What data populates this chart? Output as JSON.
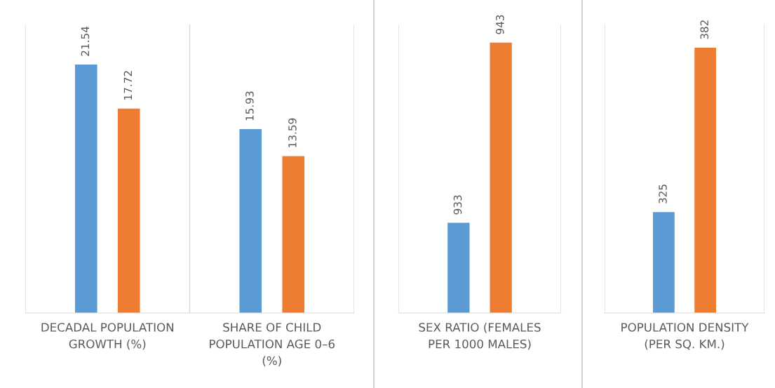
{
  "chart_data": [
    {
      "type": "bar",
      "categories": [
        "DECADAL POPULATION GROWTH (%)",
        "SHARE OF CHILD POPULATION AGE 0–6 (%)"
      ],
      "ylim": [
        0,
        25
      ],
      "data_labels": true,
      "grid": false,
      "legend": false,
      "tick_labels": "x",
      "series": [
        {
          "color": "#5b9bd5",
          "values": [
            21.54,
            15.93
          ]
        },
        {
          "color": "#ed7d31",
          "values": [
            17.72,
            13.59
          ]
        }
      ]
    },
    {
      "type": "bar",
      "categories": [
        "SEX RATIO (FEMALES PER 1000 MALES)"
      ],
      "ylim": [
        928,
        944
      ],
      "data_labels": true,
      "grid": false,
      "legend": false,
      "tick_labels": "x",
      "series": [
        {
          "color": "#5b9bd5",
          "values": [
            933
          ]
        },
        {
          "color": "#ed7d31",
          "values": [
            943
          ]
        }
      ]
    },
    {
      "type": "bar",
      "categories": [
        "POPULATION DENSITY (PER SQ. KM.)"
      ],
      "ylim": [
        290,
        390
      ],
      "data_labels": true,
      "grid": false,
      "legend": false,
      "tick_labels": "x",
      "series": [
        {
          "color": "#5b9bd5",
          "values": [
            325
          ]
        },
        {
          "color": "#ed7d31",
          "values": [
            382
          ]
        }
      ]
    }
  ]
}
